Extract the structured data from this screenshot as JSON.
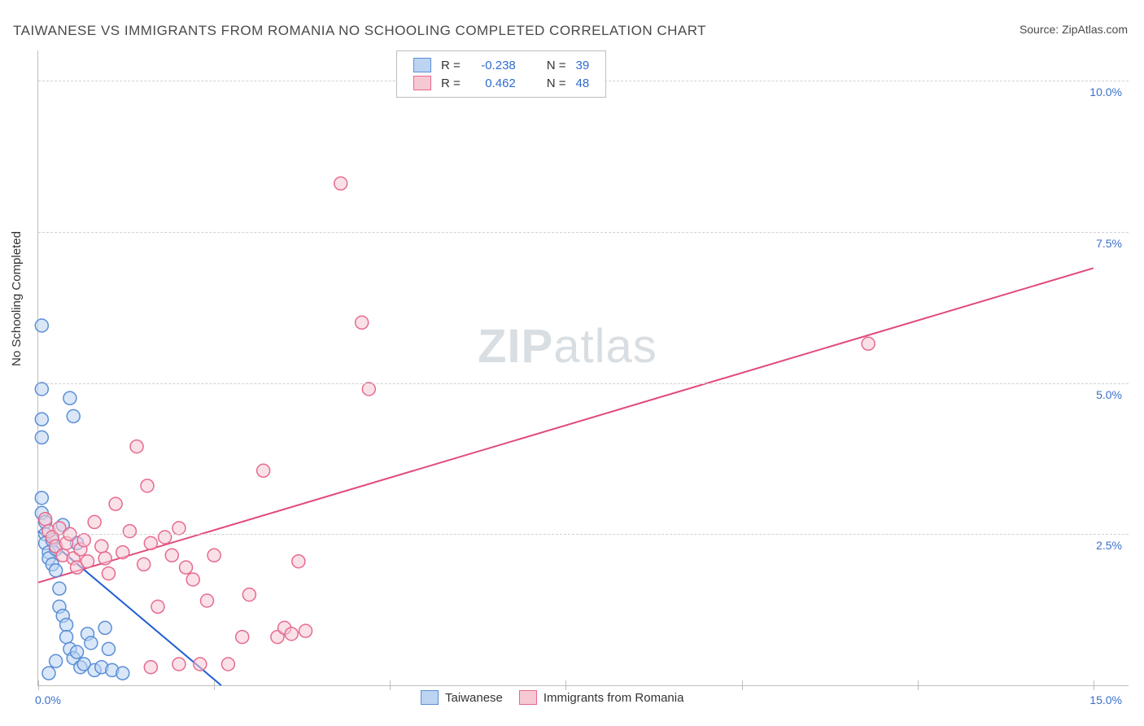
{
  "title": "TAIWANESE VS IMMIGRANTS FROM ROMANIA NO SCHOOLING COMPLETED CORRELATION CHART",
  "source_label": "Source:",
  "source_value": "ZipAtlas.com",
  "ylabel": "No Schooling Completed",
  "watermark_a": "ZIP",
  "watermark_b": "atlas",
  "chart": {
    "type": "scatter",
    "background_color": "#ffffff",
    "grid_color": "#d0d0d0",
    "axis_color": "#bdbdbd",
    "tick_label_color": "#3b6fc9",
    "x": {
      "min": 0.0,
      "max": 15.5,
      "ticks": [
        0.0,
        2.5,
        5.0,
        7.5,
        10.0,
        12.5,
        15.0
      ],
      "tick_labels": [
        "0.0%",
        "",
        "",
        "",
        "",
        "",
        "15.0%"
      ]
    },
    "y": {
      "min": 0.0,
      "max": 10.5,
      "gridlines": [
        2.5,
        5.0,
        7.5,
        10.0
      ],
      "grid_labels": [
        "2.5%",
        "5.0%",
        "7.5%",
        "10.0%"
      ]
    },
    "marker_radius": 8,
    "marker_stroke_width": 1.5,
    "line_width": 2,
    "series": [
      {
        "name": "Taiwanese",
        "fill": "#bcd3f2",
        "stroke": "#5a8fd6",
        "fill_opacity": 0.55,
        "line_color": "#1f5fd1",
        "R": "-0.238",
        "N": "39",
        "trend": {
          "x1": 0.0,
          "y1": 2.55,
          "x2": 2.6,
          "y2": 0.0
        },
        "points": [
          [
            0.05,
            5.95
          ],
          [
            0.05,
            4.9
          ],
          [
            0.05,
            4.4
          ],
          [
            0.05,
            4.1
          ],
          [
            0.05,
            3.1
          ],
          [
            0.05,
            2.85
          ],
          [
            0.1,
            2.7
          ],
          [
            0.1,
            2.5
          ],
          [
            0.1,
            2.35
          ],
          [
            0.15,
            2.2
          ],
          [
            0.15,
            2.1
          ],
          [
            0.2,
            2.4
          ],
          [
            0.2,
            2.0
          ],
          [
            0.25,
            1.9
          ],
          [
            0.25,
            2.25
          ],
          [
            0.3,
            1.6
          ],
          [
            0.3,
            1.3
          ],
          [
            0.35,
            1.15
          ],
          [
            0.4,
            1.0
          ],
          [
            0.4,
            0.8
          ],
          [
            0.45,
            0.6
          ],
          [
            0.5,
            0.45
          ],
          [
            0.55,
            0.55
          ],
          [
            0.6,
            0.3
          ],
          [
            0.65,
            0.35
          ],
          [
            0.7,
            0.85
          ],
          [
            0.75,
            0.7
          ],
          [
            0.8,
            0.25
          ],
          [
            0.9,
            0.3
          ],
          [
            0.95,
            0.95
          ],
          [
            1.0,
            0.6
          ],
          [
            1.05,
            0.25
          ],
          [
            0.45,
            4.75
          ],
          [
            0.5,
            4.45
          ],
          [
            0.35,
            2.65
          ],
          [
            0.55,
            2.35
          ],
          [
            0.15,
            0.2
          ],
          [
            0.25,
            0.4
          ],
          [
            1.2,
            0.2
          ]
        ]
      },
      {
        "name": "Immigrants from Romania",
        "fill": "#f6c8d4",
        "stroke": "#e66a8e",
        "fill_opacity": 0.55,
        "line_color": "#e14a7a",
        "R": "0.462",
        "N": "48",
        "trend": {
          "x1": 0.0,
          "y1": 1.7,
          "x2": 15.0,
          "y2": 6.9
        },
        "points": [
          [
            0.1,
            2.75
          ],
          [
            0.15,
            2.55
          ],
          [
            0.2,
            2.45
          ],
          [
            0.25,
            2.3
          ],
          [
            0.3,
            2.6
          ],
          [
            0.35,
            2.15
          ],
          [
            0.4,
            2.35
          ],
          [
            0.45,
            2.5
          ],
          [
            0.5,
            2.1
          ],
          [
            0.55,
            1.95
          ],
          [
            0.6,
            2.25
          ],
          [
            0.65,
            2.4
          ],
          [
            0.7,
            2.05
          ],
          [
            0.8,
            2.7
          ],
          [
            0.9,
            2.3
          ],
          [
            0.95,
            2.1
          ],
          [
            1.0,
            1.85
          ],
          [
            1.1,
            3.0
          ],
          [
            1.2,
            2.2
          ],
          [
            1.3,
            2.55
          ],
          [
            1.4,
            3.95
          ],
          [
            1.5,
            2.0
          ],
          [
            1.55,
            3.3
          ],
          [
            1.6,
            2.35
          ],
          [
            1.7,
            1.3
          ],
          [
            1.8,
            2.45
          ],
          [
            1.9,
            2.15
          ],
          [
            2.0,
            2.6
          ],
          [
            2.1,
            1.95
          ],
          [
            2.2,
            1.75
          ],
          [
            2.3,
            0.35
          ],
          [
            2.4,
            1.4
          ],
          [
            2.5,
            2.15
          ],
          [
            2.7,
            0.35
          ],
          [
            2.9,
            0.8
          ],
          [
            3.0,
            1.5
          ],
          [
            3.2,
            3.55
          ],
          [
            3.4,
            0.8
          ],
          [
            3.5,
            0.95
          ],
          [
            3.6,
            0.85
          ],
          [
            3.7,
            2.05
          ],
          [
            3.8,
            0.9
          ],
          [
            4.3,
            8.3
          ],
          [
            4.6,
            6.0
          ],
          [
            4.7,
            4.9
          ],
          [
            1.6,
            0.3
          ],
          [
            2.0,
            0.35
          ],
          [
            11.8,
            5.65
          ]
        ]
      }
    ],
    "bottom_legend": [
      {
        "swatch_fill": "#bcd3f2",
        "swatch_stroke": "#5a8fd6",
        "label": "Taiwanese"
      },
      {
        "swatch_fill": "#f6c8d4",
        "swatch_stroke": "#e66a8e",
        "label": "Immigrants from Romania"
      }
    ],
    "stats_legend": {
      "r_label": "R =",
      "n_label": "N =",
      "value_color": "#2f6bd0"
    }
  }
}
